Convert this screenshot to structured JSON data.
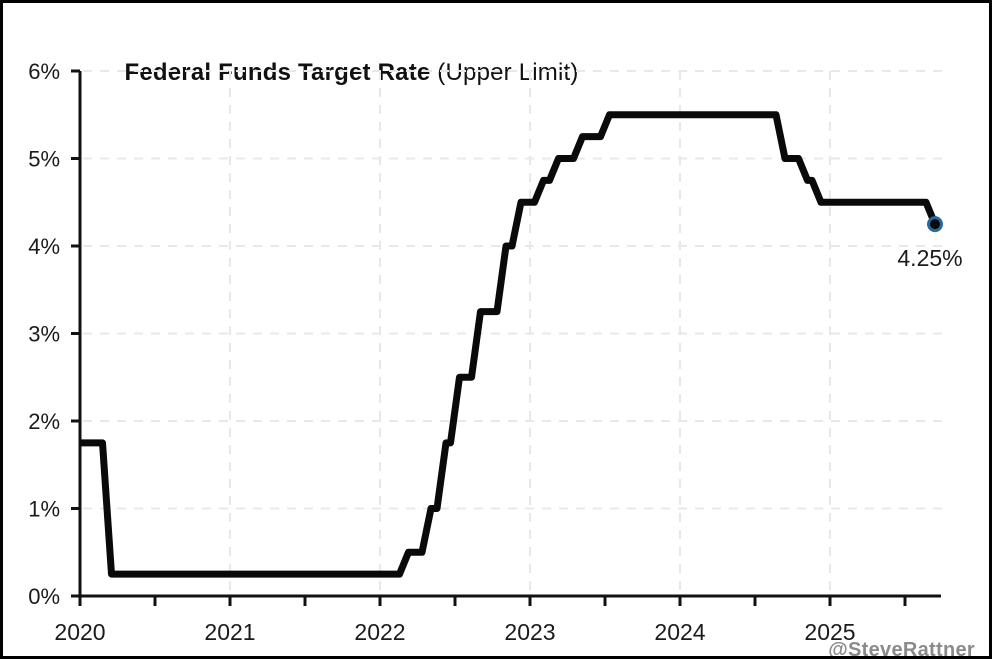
{
  "title": {
    "main": "Federal Funds Target Rate",
    "suffix": " (Upper Limit)"
  },
  "watermark": "@SteveRattner",
  "colors": {
    "background": "#ffffff",
    "border": "#000000",
    "line": "#0a0a0a",
    "axis": "#111111",
    "grid": "#e8e8e8",
    "text": "#1b1b1b",
    "watermark": "#8a8a8a",
    "dot_fill": "#0a0a0a",
    "dot_ring": "#26699c"
  },
  "chart_data": {
    "type": "line",
    "subtype": "step-after",
    "title": "Federal Funds Target Rate",
    "subtitle": "(Upper Limit)",
    "xlabel": "",
    "ylabel": "",
    "xlim": [
      2020,
      2025.75
    ],
    "ylim": [
      0,
      6
    ],
    "grid": true,
    "legend": false,
    "y_ticks": [
      0,
      1,
      2,
      3,
      4,
      5,
      6
    ],
    "y_tick_labels": [
      "0%",
      "1%",
      "2%",
      "3%",
      "4%",
      "5%",
      "6%"
    ],
    "x_ticks": [
      2020,
      2021,
      2022,
      2023,
      2024,
      2025
    ],
    "x_tick_labels": [
      "2020",
      "2021",
      "2022",
      "2023",
      "2024",
      "2025"
    ],
    "x_minor_ticks": [
      2020.5,
      2021.5,
      2022.5,
      2023.5,
      2024.5,
      2025.5
    ],
    "series": [
      {
        "name": "Federal Funds Target Rate (Upper Limit)",
        "start": [
          2020.0,
          1.75
        ],
        "changes": [
          {
            "x": 2020.18,
            "rate": 0.25
          },
          {
            "x": 2022.16,
            "rate": 0.5
          },
          {
            "x": 2022.31,
            "rate": 1.0
          },
          {
            "x": 2022.41,
            "rate": 1.75
          },
          {
            "x": 2022.5,
            "rate": 2.5
          },
          {
            "x": 2022.64,
            "rate": 3.25
          },
          {
            "x": 2022.81,
            "rate": 4.0
          },
          {
            "x": 2022.91,
            "rate": 4.5
          },
          {
            "x": 2023.06,
            "rate": 4.75
          },
          {
            "x": 2023.16,
            "rate": 5.0
          },
          {
            "x": 2023.32,
            "rate": 5.25
          },
          {
            "x": 2023.5,
            "rate": 5.5
          },
          {
            "x": 2024.67,
            "rate": 5.0
          },
          {
            "x": 2024.82,
            "rate": 4.75
          },
          {
            "x": 2024.91,
            "rate": 4.5
          },
          {
            "x": 2025.67,
            "rate": 4.25
          }
        ]
      }
    ],
    "end_value": 4.25,
    "end_label": "4.25%"
  }
}
